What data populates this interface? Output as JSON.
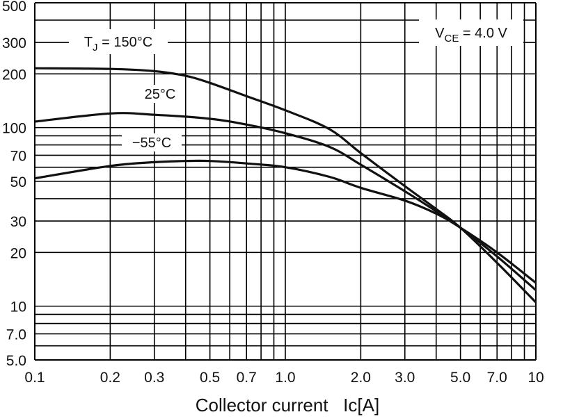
{
  "chart_data": {
    "type": "line",
    "xscale": "log",
    "yscale": "log",
    "xlim": [
      0.1,
      10
    ],
    "ylim": [
      5.0,
      500
    ],
    "xlabel": "Collector current   Ic[A]",
    "ylabel": "",
    "x_ticks": [
      "0.1",
      "0.2",
      "0.3",
      "0.5",
      "0.7",
      "1.0",
      "2.0",
      "3.0",
      "5.0",
      "7.0",
      "10"
    ],
    "y_ticks": [
      "500",
      "300",
      "200",
      "100",
      "70",
      "50",
      "30",
      "20",
      "10",
      "7.0",
      "5.0"
    ],
    "annotation": {
      "text": "V",
      "sub": "CE",
      "rest": " = 4.0 V"
    },
    "grid": true,
    "series": [
      {
        "name": "TJ = 150°C",
        "label_main": "T",
        "label_sub": "J",
        "label_rest": " = 150°C",
        "x": [
          0.1,
          0.2,
          0.3,
          0.4,
          0.5,
          0.7,
          1.0,
          1.5,
          2.0,
          3.0,
          4.0,
          5.0,
          7.0,
          10
        ],
        "y": [
          215,
          213,
          207,
          195,
          178,
          150,
          125,
          98,
          72,
          47,
          35,
          27.5,
          17.5,
          10.5
        ]
      },
      {
        "name": "25°C",
        "label_main": "25°C",
        "label_sub": "",
        "label_rest": "",
        "x": [
          0.1,
          0.2,
          0.3,
          0.5,
          0.7,
          1.0,
          1.5,
          2.0,
          3.0,
          4.0,
          5.0,
          7.0,
          10
        ],
        "y": [
          108,
          120,
          118,
          112,
          104,
          93,
          78,
          62,
          44,
          34,
          27.5,
          19,
          12.3
        ]
      },
      {
        "name": "-55°C",
        "label_main": "−55°C",
        "label_sub": "",
        "label_rest": "",
        "x": [
          0.1,
          0.2,
          0.3,
          0.4,
          0.5,
          0.7,
          1.0,
          1.5,
          2.0,
          3.0,
          4.0,
          5.0,
          7.0,
          10
        ],
        "y": [
          52,
          61,
          64,
          65,
          65,
          63,
          60,
          53,
          46,
          39,
          33,
          27.5,
          20,
          13.5
        ]
      }
    ]
  }
}
